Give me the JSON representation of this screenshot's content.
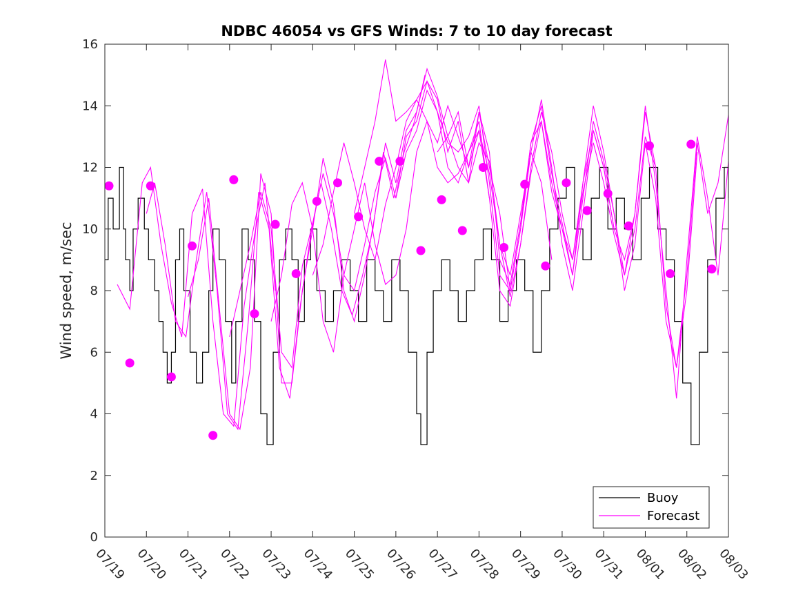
{
  "chart_data": {
    "type": "line",
    "title": "NDBC 46054 vs GFS Winds: 7 to 10 day forecast",
    "xlabel": "",
    "ylabel": "Wind speed, m/sec",
    "ylim": [
      0,
      16
    ],
    "yticks": [
      0,
      2,
      4,
      6,
      8,
      10,
      12,
      14,
      16
    ],
    "xlim": [
      0,
      15
    ],
    "xtick_labels": [
      "07/19",
      "07/20",
      "07/21",
      "07/22",
      "07/23",
      "07/24",
      "07/25",
      "07/26",
      "07/27",
      "07/28",
      "07/29",
      "07/30",
      "07/31",
      "08/01",
      "08/02",
      "08/03"
    ],
    "grid": false,
    "legend_position": "bottom-right",
    "colors": {
      "buoy": "#000000",
      "forecast": "#ff00ff"
    },
    "series": [
      {
        "name": "Buoy",
        "type": "step",
        "x": [
          0,
          0.08,
          0.2,
          0.35,
          0.45,
          0.5,
          0.6,
          0.68,
          0.8,
          0.95,
          1.05,
          1.2,
          1.3,
          1.4,
          1.5,
          1.6,
          1.7,
          1.8,
          1.9,
          2.05,
          2.2,
          2.35,
          2.5,
          2.6,
          2.75,
          2.9,
          3.05,
          3.15,
          3.3,
          3.45,
          3.6,
          3.75,
          3.9,
          4.05,
          4.2,
          4.35,
          4.5,
          4.65,
          4.8,
          4.95,
          5.1,
          5.3,
          5.5,
          5.7,
          5.9,
          6.1,
          6.3,
          6.5,
          6.7,
          6.9,
          7.1,
          7.3,
          7.5,
          7.6,
          7.75,
          7.9,
          8.1,
          8.3,
          8.5,
          8.7,
          8.9,
          9.1,
          9.3,
          9.5,
          9.7,
          9.9,
          10.1,
          10.3,
          10.5,
          10.7,
          10.9,
          11.1,
          11.3,
          11.5,
          11.7,
          11.9,
          12.1,
          12.3,
          12.5,
          12.7,
          12.9,
          13.1,
          13.3,
          13.5,
          13.7,
          13.9,
          14.1,
          14.3,
          14.5,
          14.7,
          14.9,
          15
        ],
        "values": [
          9,
          11,
          10,
          12,
          10,
          9,
          8,
          10,
          11,
          10,
          9,
          8,
          7,
          6,
          5,
          6,
          9,
          10,
          8,
          6,
          5,
          6,
          8,
          10,
          9,
          7,
          5,
          7,
          10,
          9,
          7,
          4,
          3,
          6,
          9,
          10,
          9,
          7,
          9,
          10,
          8,
          7,
          8,
          9,
          8,
          7,
          9,
          8,
          7,
          9,
          8,
          6,
          4,
          3,
          6,
          8,
          9,
          8,
          7,
          8,
          9,
          10,
          9,
          7,
          8,
          9,
          8,
          6,
          8,
          10,
          11,
          12,
          10,
          9,
          11,
          12,
          10,
          11,
          10,
          9,
          11,
          12,
          10,
          9,
          7,
          5,
          3,
          6,
          9,
          11,
          12,
          11
        ]
      },
      {
        "name": "Forecast",
        "type": "multi-line",
        "runs": [
          {
            "x": [
              0.3,
              0.6,
              0.9,
              1.1,
              1.35,
              1.6,
              1.85,
              2.1,
              2.35,
              2.6,
              2.85,
              3.1,
              3.35,
              3.6,
              3.85,
              4.1
            ],
            "values": [
              8.2,
              7.4,
              11.5,
              12.0,
              9.5,
              7.6,
              6.5,
              10.5,
              11.3,
              7.0,
              4.0,
              3.6,
              7.5,
              9.8,
              11.5,
              8.0
            ]
          },
          {
            "x": [
              1.0,
              1.2,
              1.45,
              1.7,
              1.95,
              2.2,
              2.45,
              2.7,
              2.95,
              3.2,
              3.45,
              3.7,
              3.95,
              4.2,
              4.45,
              4.7,
              4.95,
              5.2,
              5.45,
              5.7,
              5.95,
              6.2,
              6.45,
              6.7,
              6.95,
              7.2,
              7.45,
              7.7
            ],
            "values": [
              10.5,
              11.5,
              9.5,
              7.0,
              6.5,
              9.0,
              11.2,
              8.0,
              4.0,
              3.5,
              7.0,
              11.2,
              10.0,
              5.5,
              4.5,
              7.5,
              9.8,
              11.5,
              10.0,
              8.0,
              7.2,
              8.5,
              10.0,
              12.5,
              11.0,
              12.5,
              13.5,
              15.0
            ]
          },
          {
            "x": [
              2.0,
              2.25,
              2.5,
              2.75,
              3.0,
              3.25,
              3.5,
              3.75,
              4.0,
              4.25,
              4.5,
              4.75,
              5.0,
              5.25,
              5.5,
              5.75,
              6.0,
              6.25,
              6.5,
              6.75,
              7.0,
              7.25,
              7.5,
              7.75,
              8.0,
              8.25,
              8.5,
              8.75,
              9.0,
              9.25
            ],
            "values": [
              7.8,
              9.0,
              11.0,
              7.5,
              4.0,
              3.5,
              5.5,
              11.8,
              10.5,
              5.0,
              5.0,
              8.0,
              10.0,
              12.3,
              10.8,
              8.0,
              7.0,
              8.5,
              10.5,
              12.8,
              11.5,
              13.2,
              13.8,
              15.2,
              14.3,
              13.0,
              13.8,
              12.0,
              13.2,
              11.0
            ]
          },
          {
            "x": [
              3.0,
              3.25,
              3.5,
              3.75,
              4.0,
              4.25,
              4.5,
              4.75,
              5.0,
              5.25,
              5.5,
              5.75,
              6.0,
              6.25,
              6.5,
              6.75,
              7.0,
              7.25,
              7.5,
              7.75,
              8.0,
              8.25,
              8.5,
              8.75,
              9.0,
              9.25,
              9.5,
              9.75,
              10.0,
              10.25,
              10.5,
              10.75
            ],
            "values": [
              6.5,
              8.0,
              9.5,
              11.2,
              10.0,
              6.0,
              5.5,
              8.8,
              10.2,
              11.8,
              10.5,
              8.5,
              8.0,
              9.5,
              11.2,
              12.3,
              11.0,
              13.0,
              13.5,
              14.8,
              14.2,
              12.5,
              13.5,
              11.5,
              12.8,
              12.2,
              9.5,
              8.5,
              10.5,
              12.5,
              11.5,
              9.0
            ]
          },
          {
            "x": [
              4.0,
              4.25,
              4.5,
              4.75,
              5.0,
              5.25,
              5.5,
              5.75,
              6.0,
              6.25,
              6.5,
              6.75,
              7.0,
              7.25,
              7.5,
              7.75,
              8.0,
              8.25,
              8.5,
              8.75,
              9.0,
              9.25,
              9.5,
              9.75,
              10.0,
              10.25,
              10.5,
              10.75,
              11.0,
              11.25,
              11.5,
              11.75,
              12.0,
              12.25
            ],
            "values": [
              7.0,
              8.5,
              10.8,
              11.5,
              10.0,
              7.0,
              6.0,
              8.5,
              10.0,
              11.5,
              9.5,
              8.2,
              8.5,
              10.0,
              12.5,
              13.5,
              12.8,
              14.0,
              13.0,
              12.0,
              13.8,
              12.0,
              10.5,
              8.0,
              10.0,
              12.8,
              13.5,
              11.5,
              10.0,
              8.5,
              11.5,
              13.2,
              12.0,
              10.0
            ]
          },
          {
            "x": [
              5.0,
              5.25,
              5.5,
              5.75,
              6.0,
              6.25,
              6.5,
              6.75,
              7.0,
              7.25,
              7.5,
              7.75,
              8.0,
              8.25,
              8.5,
              8.75,
              9.0,
              9.25,
              9.5,
              9.75,
              10.0,
              10.25,
              10.5,
              10.75,
              11.0,
              11.25,
              11.5,
              11.75,
              12.0,
              12.25,
              12.5,
              12.75,
              13.0,
              13.25
            ],
            "values": [
              8.5,
              9.5,
              11.2,
              12.8,
              11.5,
              10.0,
              9.0,
              10.8,
              12.0,
              13.5,
              14.2,
              14.8,
              13.8,
              12.0,
              11.5,
              12.5,
              13.2,
              11.8,
              9.5,
              7.8,
              9.5,
              11.8,
              13.5,
              11.2,
              10.0,
              9.0,
              11.2,
              12.8,
              11.5,
              9.8,
              8.5,
              10.5,
              13.8,
              12.0
            ]
          },
          {
            "x": [
              6.0,
              6.25,
              6.5,
              6.75,
              7.0,
              7.25,
              7.5,
              7.75,
              8.0,
              8.25,
              8.5,
              8.75,
              9.0,
              9.25,
              9.5,
              9.75,
              10.0,
              10.25,
              10.5,
              10.75,
              11.0,
              11.25,
              11.5,
              11.75,
              12.0,
              12.25,
              12.5,
              12.75,
              13.0,
              13.25,
              13.5,
              13.75,
              14.0,
              14.25
            ],
            "values": [
              10.5,
              12.0,
              13.5,
              15.5,
              13.5,
              13.8,
              14.2,
              13.5,
              12.0,
              11.5,
              11.8,
              12.5,
              13.5,
              11.0,
              8.0,
              7.5,
              9.5,
              12.0,
              13.8,
              12.5,
              10.5,
              9.0,
              11.5,
              14.0,
              12.5,
              10.5,
              8.0,
              9.5,
              12.8,
              11.0,
              7.0,
              5.5,
              8.0,
              12.5
            ]
          },
          {
            "x": [
              7.0,
              7.25,
              7.5,
              7.75,
              8.0,
              8.25,
              8.5,
              8.75,
              9.0,
              9.25,
              9.5,
              9.75,
              10.0,
              10.25,
              10.5,
              10.75,
              11.0,
              11.25,
              11.5,
              11.75,
              12.0,
              12.25,
              12.5,
              12.75,
              13.0,
              13.25,
              13.5,
              13.75,
              14.0,
              14.25,
              14.5,
              14.75,
              15.0
            ],
            "values": [
              11.0,
              12.5,
              13.2,
              14.5,
              13.8,
              12.8,
              12.5,
              13.0,
              14.0,
              11.5,
              8.5,
              8.0,
              10.0,
              12.5,
              14.2,
              12.0,
              9.5,
              8.0,
              10.5,
              13.2,
              12.0,
              10.0,
              9.0,
              10.5,
              14.0,
              11.5,
              8.0,
              4.5,
              9.0,
              13.0,
              11.0,
              8.5,
              12.2
            ]
          },
          {
            "x": [
              8.0,
              8.25,
              8.5,
              8.75,
              9.0,
              9.25,
              9.5,
              9.75,
              10.0,
              10.25,
              10.5,
              10.75,
              11.0,
              11.25,
              11.5,
              11.75,
              12.0,
              12.25,
              12.5,
              12.75,
              13.0,
              13.25,
              13.5,
              13.75,
              14.0,
              14.25,
              14.5,
              14.75,
              15.0
            ],
            "values": [
              12.5,
              13.0,
              12.0,
              11.5,
              13.8,
              12.5,
              9.0,
              8.2,
              10.2,
              12.8,
              14.0,
              11.8,
              10.2,
              8.5,
              11.0,
              13.5,
              12.2,
              10.5,
              8.5,
              10.0,
              13.0,
              12.0,
              7.5,
              5.5,
              8.5,
              12.8,
              10.5,
              11.5,
              13.7
            ]
          }
        ],
        "markers": {
          "x": [
            0.1,
            0.6,
            1.1,
            1.6,
            2.1,
            2.6,
            3.1,
            3.6,
            4.1,
            4.6,
            5.1,
            5.6,
            6.1,
            6.6,
            7.1,
            7.6,
            8.1,
            8.6,
            9.1,
            9.6,
            10.1,
            10.6,
            11.1,
            11.6,
            12.1,
            12.6,
            13.1,
            13.6,
            14.1,
            14.6
          ],
          "values": [
            11.4,
            5.65,
            11.4,
            5.2,
            9.45,
            3.3,
            11.6,
            7.25,
            10.15,
            8.55,
            10.9,
            11.5,
            10.4,
            12.2,
            12.2,
            9.3,
            10.95,
            9.95,
            12.0,
            9.4,
            11.45,
            8.8,
            11.5,
            10.6,
            11.15,
            10.1,
            12.7,
            8.55,
            12.75,
            8.7
          ]
        }
      }
    ]
  }
}
